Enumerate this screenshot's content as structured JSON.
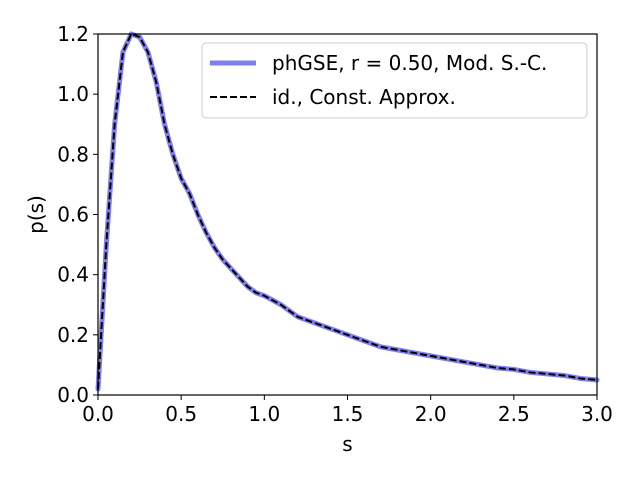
{
  "chart_data": {
    "type": "line",
    "title": "",
    "xlabel": "s",
    "ylabel": "p(s)",
    "xlim": [
      0.0,
      3.0
    ],
    "ylim": [
      0.0,
      1.2
    ],
    "x_ticks": [
      "0.0",
      "0.5",
      "1.0",
      "1.5",
      "2.0",
      "2.5",
      "3.0"
    ],
    "y_ticks": [
      "0.0",
      "0.2",
      "0.4",
      "0.6",
      "0.8",
      "1.0",
      "1.2"
    ],
    "grid": false,
    "legend_position": "top-right",
    "series": [
      {
        "name": "phGSE, r = 0.50, Mod. S.-C.",
        "color": "#7f7ff0",
        "style": "solid",
        "x": [
          0.0,
          0.05,
          0.1,
          0.15,
          0.2,
          0.25,
          0.3,
          0.35,
          0.4,
          0.45,
          0.5,
          0.55,
          0.6,
          0.65,
          0.7,
          0.75,
          0.8,
          0.85,
          0.9,
          0.95,
          1.0,
          1.1,
          1.2,
          1.3,
          1.4,
          1.5,
          1.6,
          1.7,
          1.8,
          1.9,
          2.0,
          2.1,
          2.2,
          2.3,
          2.4,
          2.5,
          2.6,
          2.7,
          2.8,
          2.9,
          3.0
        ],
        "y": [
          0.02,
          0.5,
          0.9,
          1.14,
          1.2,
          1.19,
          1.14,
          1.04,
          0.9,
          0.8,
          0.72,
          0.67,
          0.6,
          0.54,
          0.49,
          0.45,
          0.42,
          0.39,
          0.36,
          0.34,
          0.33,
          0.3,
          0.26,
          0.24,
          0.22,
          0.2,
          0.18,
          0.16,
          0.15,
          0.14,
          0.13,
          0.12,
          0.11,
          0.1,
          0.09,
          0.085,
          0.075,
          0.07,
          0.065,
          0.055,
          0.05
        ]
      },
      {
        "name": "id., Const. Approx.",
        "color": "#000000",
        "style": "dashed",
        "x": [
          0.0,
          0.05,
          0.1,
          0.15,
          0.2,
          0.25,
          0.3,
          0.35,
          0.4,
          0.45,
          0.5,
          0.55,
          0.6,
          0.65,
          0.7,
          0.75,
          0.8,
          0.85,
          0.9,
          0.95,
          1.0,
          1.1,
          1.2,
          1.3,
          1.4,
          1.5,
          1.6,
          1.7,
          1.8,
          1.9,
          2.0,
          2.1,
          2.2,
          2.3,
          2.4,
          2.5,
          2.6,
          2.7,
          2.8,
          2.9,
          3.0
        ],
        "y": [
          0.02,
          0.5,
          0.9,
          1.14,
          1.2,
          1.19,
          1.14,
          1.04,
          0.9,
          0.8,
          0.72,
          0.67,
          0.6,
          0.54,
          0.49,
          0.45,
          0.42,
          0.39,
          0.36,
          0.34,
          0.33,
          0.3,
          0.26,
          0.24,
          0.22,
          0.2,
          0.18,
          0.16,
          0.15,
          0.14,
          0.13,
          0.12,
          0.11,
          0.1,
          0.09,
          0.085,
          0.075,
          0.07,
          0.065,
          0.055,
          0.05
        ]
      }
    ]
  }
}
